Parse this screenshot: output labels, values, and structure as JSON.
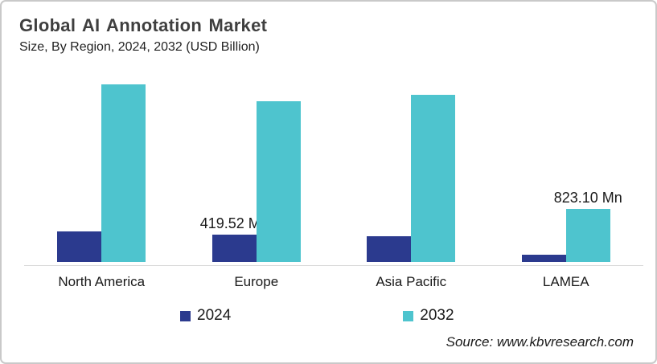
{
  "header": {
    "title": "Global AI Annotation Market",
    "subtitle": "Size, By Region, 2024, 2032 (USD Billion)"
  },
  "legend": {
    "items": [
      {
        "label": "2024",
        "color": "#2b3a8e"
      },
      {
        "label": "2032",
        "color": "#4ec4ce"
      }
    ]
  },
  "footer": {
    "source": "Source: www.kbvresearch.com"
  },
  "colors": {
    "series_2024": "#2b3a8e",
    "series_2032": "#4ec4ce",
    "axis_line": "#d9d9d9",
    "title_text": "#3f3f3f"
  },
  "chart_data": {
    "type": "bar",
    "title": "Global AI Annotation Market",
    "subtitle": "Size, By Region, 2024, 2032 (USD Billion)",
    "unit": "USD Million",
    "categories": [
      "North America",
      "Europe",
      "Asia Pacific",
      "LAMEA"
    ],
    "series": [
      {
        "name": "2024",
        "color": "#2b3a8e",
        "values": [
          470,
          419.52,
          400,
          110
        ],
        "data_labels": [
          "",
          "419.52 Mn",
          "",
          ""
        ]
      },
      {
        "name": "2032",
        "color": "#4ec4ce",
        "values": [
          2760,
          2500,
          2600,
          823.1
        ],
        "data_labels": [
          "",
          "",
          "",
          "823.10 Mn"
        ]
      }
    ],
    "ylim": [
      0,
      2900
    ],
    "gridlines": false,
    "y_axis_visible": false,
    "legend_position": "bottom",
    "source": "Source: www.kbvresearch.com"
  }
}
